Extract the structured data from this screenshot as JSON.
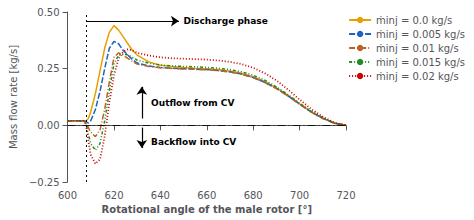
{
  "chart_data": {
    "type": "line",
    "xlabel": "Rotational angle of the male rotor [°]",
    "ylabel": "Mass flow rate [kg/s]",
    "xlim": [
      600,
      720
    ],
    "ylim": [
      -0.25,
      0.5
    ],
    "xticks": [
      600,
      620,
      640,
      660,
      680,
      700,
      720
    ],
    "yticks": [
      {
        "value": -0.25,
        "label": "−0.25"
      },
      {
        "value": 0,
        "label": "0.00"
      },
      0.25,
      {
        "value": 0.5,
        "label": "0.50"
      }
    ],
    "grid": false,
    "legend": "upper right",
    "x": [
      600,
      604,
      607,
      608,
      609,
      610,
      612,
      614,
      616,
      618,
      620,
      622,
      624,
      626,
      628,
      630,
      635,
      640,
      645,
      650,
      655,
      660,
      665,
      670,
      675,
      680,
      685,
      690,
      695,
      700,
      705,
      710,
      715,
      720
    ],
    "series": [
      {
        "name": "ṁinj = 0.0 kg/s",
        "color": "#E8A000",
        "line_style": "solid",
        "values": [
          0.02,
          0.02,
          0.02,
          0.02,
          0.03,
          0.06,
          0.14,
          0.24,
          0.34,
          0.41,
          0.44,
          0.42,
          0.39,
          0.36,
          0.33,
          0.31,
          0.28,
          0.265,
          0.26,
          0.255,
          0.252,
          0.25,
          0.246,
          0.24,
          0.23,
          0.215,
          0.193,
          0.165,
          0.132,
          0.095,
          0.06,
          0.032,
          0.01,
          0.0
        ]
      },
      {
        "name": "ṁinj = 0.005 kg/s",
        "color": "#2060C0",
        "line_style": "dashed",
        "values": [
          0.02,
          0.02,
          0.02,
          0.015,
          0.01,
          0.02,
          0.07,
          0.15,
          0.25,
          0.34,
          0.37,
          0.36,
          0.33,
          0.31,
          0.29,
          0.275,
          0.262,
          0.255,
          0.252,
          0.25,
          0.248,
          0.246,
          0.242,
          0.236,
          0.226,
          0.211,
          0.19,
          0.163,
          0.13,
          0.094,
          0.059,
          0.031,
          0.009,
          0.0
        ]
      },
      {
        "name": "ṁinj = 0.01 kg/s",
        "color": "#C06020",
        "line_style": "dashdot",
        "values": [
          0.02,
          0.02,
          0.02,
          0.01,
          -0.01,
          -0.03,
          -0.05,
          -0.02,
          0.07,
          0.19,
          0.3,
          0.32,
          0.31,
          0.295,
          0.282,
          0.27,
          0.26,
          0.254,
          0.251,
          0.249,
          0.247,
          0.245,
          0.241,
          0.235,
          0.225,
          0.21,
          0.189,
          0.162,
          0.129,
          0.093,
          0.058,
          0.03,
          0.009,
          0.0
        ]
      },
      {
        "name": "ṁinj = 0.015 kg/s",
        "color": "#228B22",
        "line_style": "dashdotdot",
        "values": [
          0.02,
          0.02,
          0.02,
          0.005,
          -0.04,
          -0.08,
          -0.11,
          -0.08,
          0.02,
          0.15,
          0.27,
          0.31,
          0.315,
          0.31,
          0.3,
          0.288,
          0.274,
          0.266,
          0.262,
          0.26,
          0.258,
          0.256,
          0.252,
          0.246,
          0.236,
          0.221,
          0.199,
          0.17,
          0.136,
          0.098,
          0.062,
          0.033,
          0.01,
          0.0
        ]
      },
      {
        "name": "ṁinj = 0.02 kg/s",
        "color": "#CC0000",
        "line_style": "dotted",
        "values": [
          0.02,
          0.02,
          0.02,
          0.0,
          -0.07,
          -0.13,
          -0.17,
          -0.15,
          -0.05,
          0.1,
          0.22,
          0.295,
          0.325,
          0.335,
          0.33,
          0.32,
          0.308,
          0.3,
          0.296,
          0.294,
          0.292,
          0.29,
          0.286,
          0.28,
          0.27,
          0.254,
          0.23,
          0.198,
          0.158,
          0.114,
          0.072,
          0.038,
          0.012,
          0.0
        ]
      }
    ],
    "vline_x": 608,
    "hline_y": 0,
    "annotations": [
      {
        "text": "Discharge phase",
        "x": 650,
        "y": 0.46,
        "arrow": {
          "from": [
            608,
            0.46
          ],
          "to": [
            648,
            0.46
          ]
        }
      },
      {
        "text": "Outflow from CV",
        "x": 636,
        "y": 0.1,
        "arrow": {
          "from": [
            632,
            0.03
          ],
          "to": [
            632,
            0.17
          ]
        }
      },
      {
        "text": "Backflow into CV",
        "x": 636,
        "y": -0.075,
        "arrow": {
          "from": [
            632,
            -0.01
          ],
          "to": [
            632,
            -0.1
          ]
        }
      }
    ]
  }
}
